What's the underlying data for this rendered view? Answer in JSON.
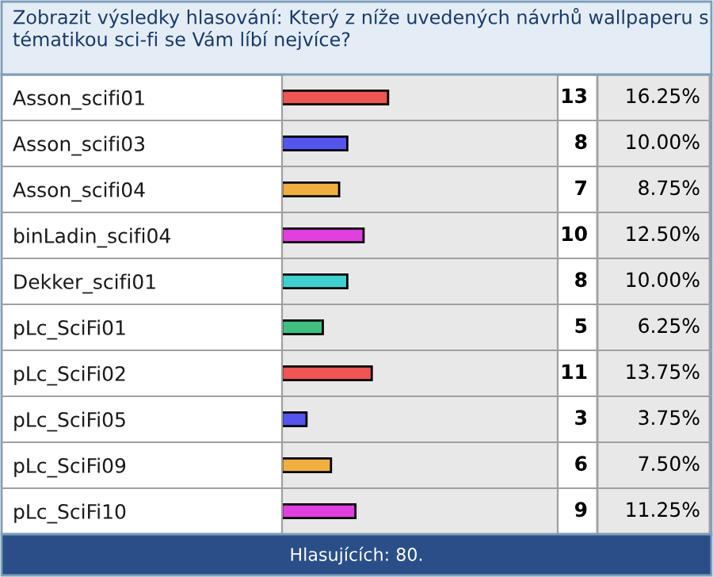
{
  "chart_data": {
    "type": "bar",
    "orientation": "horizontal",
    "title": "Zobrazit výsledky hlasování:",
    "subtitle": "Který z níže uvedených návrhů wallpaperu s tématikou sci-fi se Vám líbí nejvíce?",
    "categories": [
      "Asson_scifi01",
      "Asson_scifi03",
      "Asson_scifi04",
      "binLadin_scifi04",
      "Dekker_scifi01",
      "pLc_SciFi01",
      "pLc_SciFi02",
      "pLc_SciFi05",
      "pLc_SciFi09",
      "pLc_SciFi10"
    ],
    "values": [
      13,
      8,
      7,
      10,
      8,
      5,
      11,
      3,
      6,
      9
    ],
    "colors": [
      "#ee5555",
      "#5555ee",
      "#f0b040",
      "#e040e0",
      "#40d0d0",
      "#40c080",
      "#ee5555",
      "#5555ee",
      "#f0b040",
      "#e040e0"
    ],
    "data_labels": true,
    "annotations": [
      "16.25%",
      "10.00%",
      "8.75%",
      "12.50%",
      "10.00%",
      "6.25%",
      "13.75%",
      "3.75%",
      "7.50%",
      "11.25%",
      "Hlasujících: 80."
    ],
    "grid": false,
    "legend": false
  }
}
